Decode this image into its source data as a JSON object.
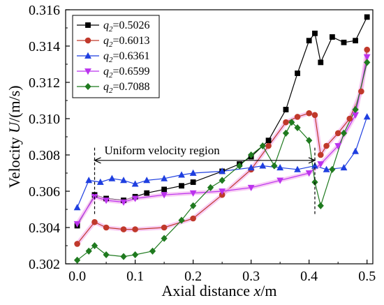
{
  "chart_data": {
    "type": "line",
    "xlabel": {
      "prefix": "Axial distance ",
      "var": "x",
      "suffix": "/m"
    },
    "ylabel": {
      "prefix": "Velocity ",
      "var": "U",
      "suffix": "/(m/s)"
    },
    "xlim": [
      -0.02,
      0.51
    ],
    "ylim": [
      0.302,
      0.316
    ],
    "xticks": [
      "0.0",
      "0.1",
      "0.2",
      "0.3",
      "0.4",
      "0.5"
    ],
    "xtick_values": [
      0.0,
      0.1,
      0.2,
      0.3,
      0.4,
      0.5
    ],
    "yticks": [
      "0.302",
      "0.304",
      "0.306",
      "0.308",
      "0.310",
      "0.312",
      "0.314",
      "0.316"
    ],
    "ytick_values": [
      0.302,
      0.304,
      0.306,
      0.308,
      0.31,
      0.312,
      0.314,
      0.316
    ],
    "grid": false,
    "legend_position": "top-left",
    "annotation": {
      "text": "Uniform velocity region",
      "x_start": 0.03,
      "x_end": 0.41,
      "y": 0.3077
    },
    "series": [
      {
        "name": "0.5026",
        "label_var": "q",
        "label_sub": "2",
        "color": "#000000",
        "marker": "square",
        "x": [
          0.0,
          0.03,
          0.05,
          0.08,
          0.1,
          0.12,
          0.15,
          0.18,
          0.2,
          0.25,
          0.28,
          0.3,
          0.33,
          0.36,
          0.38,
          0.4,
          0.41,
          0.42,
          0.44,
          0.46,
          0.48,
          0.5
        ],
        "y": [
          0.3041,
          0.3058,
          0.3056,
          0.3055,
          0.3057,
          0.3059,
          0.3061,
          0.3063,
          0.3065,
          0.3071,
          0.3075,
          0.3079,
          0.3088,
          0.3105,
          0.3125,
          0.3143,
          0.3147,
          0.3131,
          0.3145,
          0.3142,
          0.3143,
          0.3156
        ]
      },
      {
        "name": "0.6013",
        "label_var": "q",
        "label_sub": "2",
        "color": "#c0392b",
        "marker": "circle",
        "x": [
          0.0,
          0.03,
          0.05,
          0.08,
          0.1,
          0.15,
          0.2,
          0.25,
          0.3,
          0.33,
          0.36,
          0.38,
          0.4,
          0.41,
          0.42,
          0.43,
          0.45,
          0.47,
          0.49,
          0.5
        ],
        "y": [
          0.3031,
          0.3043,
          0.304,
          0.3039,
          0.3039,
          0.304,
          0.3045,
          0.3058,
          0.3072,
          0.3085,
          0.3098,
          0.3101,
          0.3103,
          0.3102,
          0.308,
          0.3085,
          0.3092,
          0.31,
          0.3115,
          0.3138
        ]
      },
      {
        "name": "0.6361",
        "label_var": "q",
        "label_sub": "2",
        "color": "#1f3fe0",
        "marker": "triangle-up",
        "x": [
          0.0,
          0.02,
          0.04,
          0.06,
          0.08,
          0.1,
          0.12,
          0.15,
          0.18,
          0.2,
          0.25,
          0.3,
          0.32,
          0.35,
          0.38,
          0.41,
          0.43,
          0.46,
          0.48,
          0.5
        ],
        "y": [
          0.3051,
          0.3066,
          0.3065,
          0.3067,
          0.3066,
          0.3064,
          0.3066,
          0.3067,
          0.3069,
          0.307,
          0.3071,
          0.3073,
          0.3074,
          0.3073,
          0.3072,
          0.3074,
          0.3072,
          0.3073,
          0.3082,
          0.3101
        ]
      },
      {
        "name": "0.6599",
        "label_var": "q",
        "label_sub": "2",
        "color": "#bb33ee",
        "marker": "triangle-down",
        "x": [
          0.0,
          0.03,
          0.05,
          0.08,
          0.1,
          0.15,
          0.2,
          0.25,
          0.3,
          0.35,
          0.4,
          0.42,
          0.45,
          0.48,
          0.5
        ],
        "y": [
          0.3042,
          0.3057,
          0.3055,
          0.3054,
          0.3056,
          0.3058,
          0.3059,
          0.306,
          0.3062,
          0.3066,
          0.307,
          0.3075,
          0.3085,
          0.3102,
          0.3134
        ]
      },
      {
        "name": "0.7088",
        "label_var": "q",
        "label_sub": "2",
        "color": "#1f7a1f",
        "marker": "diamond",
        "x": [
          0.0,
          0.02,
          0.03,
          0.05,
          0.08,
          0.1,
          0.13,
          0.15,
          0.18,
          0.2,
          0.23,
          0.25,
          0.28,
          0.3,
          0.32,
          0.34,
          0.36,
          0.37,
          0.38,
          0.4,
          0.41,
          0.42,
          0.44,
          0.46,
          0.48,
          0.5
        ],
        "y": [
          0.3022,
          0.3027,
          0.303,
          0.3025,
          0.3024,
          0.3025,
          0.3027,
          0.3034,
          0.3044,
          0.3052,
          0.3062,
          0.3066,
          0.3074,
          0.308,
          0.3085,
          0.3074,
          0.3092,
          0.3098,
          0.3095,
          0.3088,
          0.3065,
          0.3052,
          0.3072,
          0.3092,
          0.3105,
          0.3131
        ]
      }
    ]
  }
}
